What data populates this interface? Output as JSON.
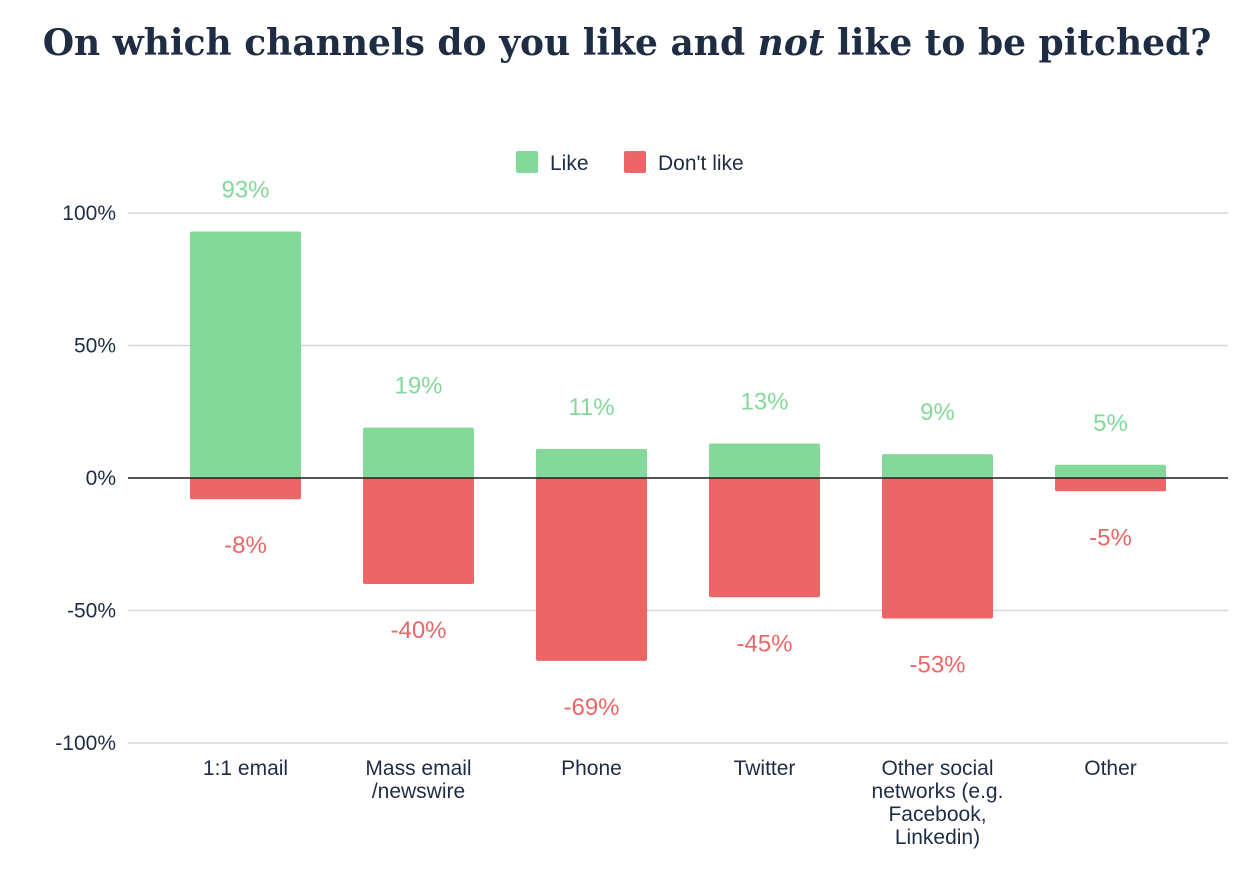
{
  "title": {
    "part1": "On which channels do you like and ",
    "emphasis": "not",
    "part2": " like to be pitched?"
  },
  "chart_data": {
    "type": "bar",
    "title": "On which channels do you like and not like to be pitched?",
    "categories": [
      [
        "1:1 email"
      ],
      [
        "Mass email",
        "/newswire"
      ],
      [
        "Phone"
      ],
      [
        "Twitter"
      ],
      [
        "Other social",
        "networks (e.g.",
        "Facebook,",
        "Linkedin)"
      ],
      [
        "Other"
      ]
    ],
    "series": [
      {
        "name": "Like",
        "color": "#84d89a",
        "values": [
          93,
          19,
          11,
          13,
          9,
          5
        ],
        "labels": [
          "93%",
          "19%",
          "11%",
          "13%",
          "9%",
          "5%"
        ]
      },
      {
        "name": "Don't like",
        "color": "#ec6567",
        "values": [
          -8,
          -40,
          -69,
          -45,
          -53,
          -5
        ],
        "labels": [
          "-8%",
          "-40%",
          "-69%",
          "-45%",
          "-53%",
          "-5%"
        ]
      }
    ],
    "yticks": [
      100,
      50,
      0,
      -50,
      -100
    ],
    "ytick_labels": [
      "100%",
      "50%",
      "0%",
      "-50%",
      "-100%"
    ],
    "ylim": [
      -100,
      100
    ],
    "grid": true,
    "legend": "top-center",
    "stacked": true
  }
}
